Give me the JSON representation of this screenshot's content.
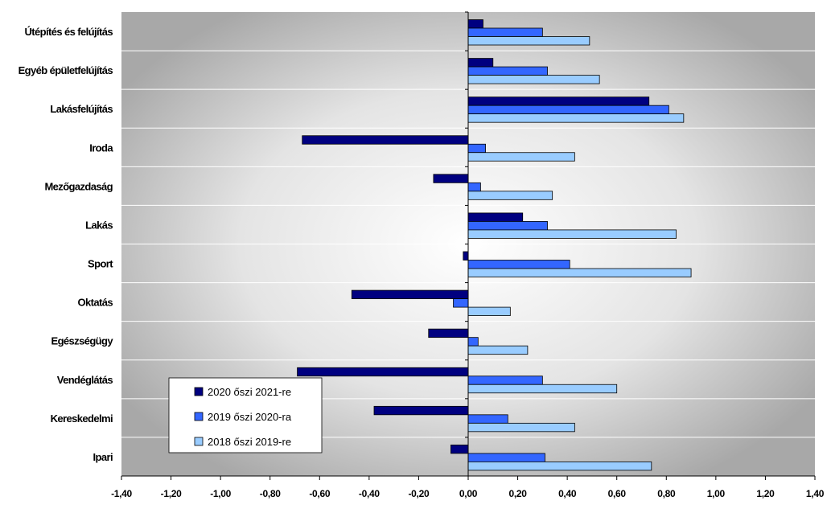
{
  "chart_data": {
    "type": "bar",
    "orientation": "horizontal",
    "title": "",
    "xlabel": "",
    "ylabel": "",
    "xlim": [
      -1.4,
      1.4
    ],
    "x_ticks": [
      "-1,40",
      "-1,20",
      "-1,00",
      "-0,80",
      "-0,60",
      "-0,40",
      "-0,20",
      "0,00",
      "0,20",
      "0,40",
      "0,60",
      "0,80",
      "1,00",
      "1,20",
      "1,40"
    ],
    "categories": [
      "Útépítés és felújítás",
      "Egyéb épületfelújítás",
      "Lakásfelújítás",
      "Iroda",
      "Mezőgazdaság",
      "Lakás",
      "Sport",
      "Oktatás",
      "Egészségügy",
      "Vendéglátás",
      "Kereskedelmi",
      "Ipari"
    ],
    "series": [
      {
        "name": "2020 őszi 2021-re",
        "color": "#000080",
        "values": [
          0.06,
          0.1,
          0.73,
          -0.67,
          -0.14,
          0.22,
          -0.02,
          -0.47,
          -0.16,
          -0.69,
          -0.38,
          -0.07
        ]
      },
      {
        "name": "2019 őszi 2020-ra",
        "color": "#3366ff",
        "values": [
          0.3,
          0.32,
          0.81,
          0.07,
          0.05,
          0.32,
          0.41,
          -0.06,
          0.04,
          0.3,
          0.16,
          0.31
        ]
      },
      {
        "name": "2018 őszi 2019-re",
        "color": "#99ccff",
        "values": [
          0.49,
          0.53,
          0.87,
          0.43,
          0.34,
          0.84,
          0.9,
          0.17,
          0.24,
          0.6,
          0.43,
          0.74
        ]
      }
    ],
    "grid": {
      "x": false,
      "y": true
    },
    "legend_position": "bottom-left"
  }
}
